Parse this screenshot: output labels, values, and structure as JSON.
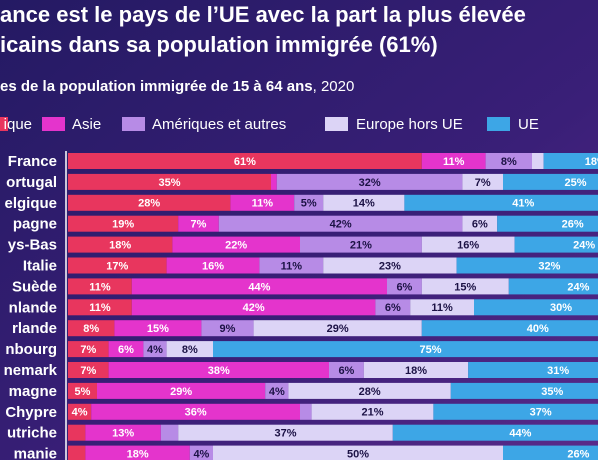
{
  "chart_data": {
    "type": "stacked-bar-horizontal",
    "title_lines": [
      "ance est le pays de l’UE avec la part la plus élevée",
      "icains dans sa population immigrée (61%)"
    ],
    "subtitle": "es de la population immigrée de 15 à 64 ans",
    "subtitle_year": ", 2020",
    "categories": [
      "France",
      "ortugal",
      "elgique",
      "pagne",
      "ys-Bas",
      "Italie",
      "Suède",
      "nlande",
      "rlande",
      "nbourg",
      "nemark",
      "magne",
      "Chypre",
      "utriche",
      "manie"
    ],
    "xlim": [
      0,
      100
    ],
    "series": [
      {
        "name": "ique",
        "color": "#e8365e",
        "values": [
          61,
          35,
          28,
          19,
          18,
          17,
          11,
          11,
          8,
          7,
          7,
          5,
          4,
          3,
          3
        ],
        "value_labels": [
          "61%",
          "35%",
          "28%",
          "19%",
          "18%",
          "17%",
          "11%",
          "11%",
          "8%",
          "7%",
          "7%",
          "5%",
          "4%",
          null,
          null
        ]
      },
      {
        "name": "Asie",
        "color": "#e434cc",
        "values": [
          11,
          1,
          11,
          7,
          22,
          16,
          44,
          42,
          15,
          6,
          38,
          29,
          36,
          13,
          18
        ],
        "value_labels": [
          "11%",
          null,
          "11%",
          "7%",
          "22%",
          "16%",
          "44%",
          "42%",
          "15%",
          "6%",
          "38%",
          "29%",
          "36%",
          "13%",
          "18%"
        ]
      },
      {
        "name": "Amériques et autres",
        "color": "#b78be6",
        "values": [
          8,
          32,
          5,
          42,
          21,
          11,
          6,
          6,
          9,
          4,
          6,
          4,
          2,
          3,
          4
        ],
        "value_labels": [
          "8%",
          "32%",
          "5%",
          "42%",
          "21%",
          "11%",
          "6%",
          "6%",
          "9%",
          "4%",
          "6%",
          "4%",
          null,
          null,
          "4%"
        ]
      },
      {
        "name": "Europe hors UE",
        "color": "#dcd4f6",
        "values": [
          2,
          7,
          14,
          6,
          16,
          23,
          15,
          11,
          29,
          8,
          18,
          28,
          21,
          37,
          50
        ],
        "value_labels": [
          null,
          "7%",
          "14%",
          "6%",
          "16%",
          "23%",
          "15%",
          "11%",
          "29%",
          "8%",
          "18%",
          "28%",
          "21%",
          "37%",
          "50%"
        ]
      },
      {
        "name": "UE",
        "color": "#3da6e6",
        "values": [
          18,
          25,
          41,
          26,
          24,
          32,
          24,
          30,
          40,
          75,
          31,
          35,
          37,
          44,
          26
        ],
        "value_labels": [
          "18%",
          "25%",
          "41%",
          "26%",
          "24%",
          "32%",
          "24%",
          "30%",
          "40%",
          "75%",
          "31%",
          "35%",
          "37%",
          "44%",
          "26%"
        ]
      }
    ]
  }
}
